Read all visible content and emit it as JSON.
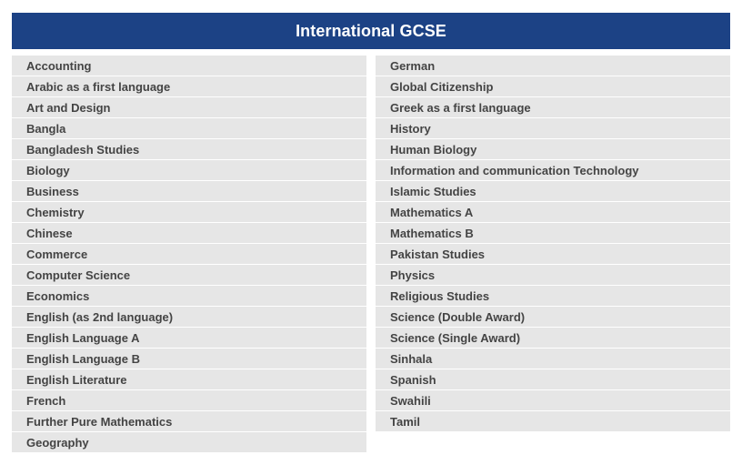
{
  "header": {
    "title": "International GCSE"
  },
  "subjects": {
    "left": [
      "Accounting",
      "Arabic as a first language",
      "Art and Design",
      "Bangla",
      "Bangladesh Studies",
      "Biology",
      "Business",
      "Chemistry",
      "Chinese",
      "Commerce",
      "Computer Science",
      "Economics",
      "English (as 2nd language)",
      "English Language A",
      "English Language B",
      "English Literature",
      "French",
      "Further Pure Mathematics",
      "Geography"
    ],
    "right": [
      "German",
      "Global Citizenship",
      "Greek as a first language",
      "History",
      "Human Biology",
      "Information and communication Technology",
      "Islamic Studies",
      "Mathematics A",
      "Mathematics B",
      "Pakistan Studies",
      "Physics",
      "Religious Studies",
      "Science (Double Award)",
      "Science (Single Award)",
      "Sinhala",
      "Spanish",
      "Swahili",
      "Tamil"
    ]
  }
}
